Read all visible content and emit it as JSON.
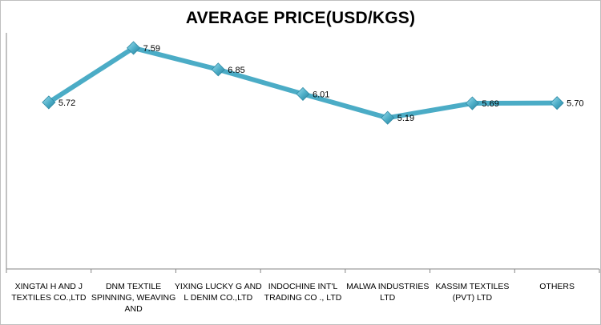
{
  "chart_data": {
    "type": "line",
    "title": "AVERAGE PRICE(USD/KGS)",
    "categories": [
      [
        "XINGTAI H AND J",
        "TEXTILES CO.,LTD"
      ],
      [
        "DNM TEXTILE",
        "SPINNING, WEAVING",
        "AND"
      ],
      [
        "YIXING LUCKY G AND",
        "L DENIM CO.,LTD"
      ],
      [
        "INDOCHINE INT'L",
        "TRADING CO ., LTD"
      ],
      [
        "MALWA INDUSTRIES",
        "LTD"
      ],
      [
        "KASSIM TEXTILES",
        "(PVT) LTD"
      ],
      [
        "OTHERS"
      ]
    ],
    "values": [
      5.72,
      7.59,
      6.85,
      6.01,
      5.19,
      5.69,
      5.7
    ],
    "data_labels": [
      "5.72",
      "7.59",
      "6.85",
      "6.01",
      "5.19",
      "5.69",
      "5.70"
    ],
    "ylim": [
      0,
      8
    ],
    "grid": false,
    "legend": "none",
    "line_color": "#4bacc6",
    "marker": "diamond",
    "marker_color": "#4bacc6",
    "axis_color": "#868686"
  }
}
